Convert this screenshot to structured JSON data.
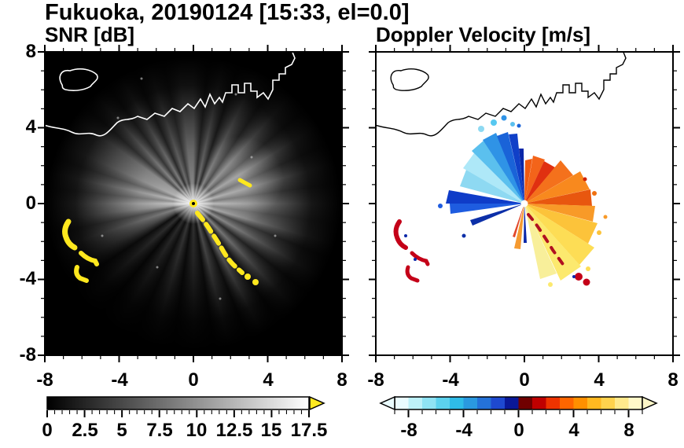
{
  "title": "Fukuoka, 20190124 [15:33, el=0.0]",
  "left_panel": {
    "title": "SNR [dB]",
    "y_ticks": [
      "8",
      "4",
      "0",
      "-4",
      "-8"
    ],
    "x_ticks": [
      "-8",
      "-4",
      "0",
      "4",
      "8"
    ],
    "colorbar_ticks": [
      "0",
      "2.5",
      "5",
      "7.5",
      "10",
      "12.5",
      "15",
      "17.5"
    ]
  },
  "right_panel": {
    "title": "Doppler Velocity [m/s]",
    "x_ticks": [
      "-8",
      "-4",
      "0",
      "4",
      "8"
    ],
    "colorbar_ticks": [
      "-8",
      "-4",
      "0",
      "4",
      "8"
    ]
  },
  "colors": {
    "clutter_yellow": "#ffe81e",
    "clutter_red": "#c40018",
    "snr_overflow_arrow": "#ffe920",
    "velocity_negative": "#1040c8",
    "velocity_positive": "#ff6600"
  },
  "chart_data": [
    {
      "type": "heatmap",
      "variant": "radar_ppi",
      "title": "SNR [dB]",
      "x_range": [
        -8,
        8
      ],
      "y_range": [
        -8,
        8
      ],
      "x_ticks": [
        -8,
        -4,
        0,
        4,
        8
      ],
      "y_ticks": [
        -8,
        -4,
        0,
        4,
        8
      ],
      "radar_center": [
        0,
        0
      ],
      "colorbar": {
        "range": [
          0,
          17.5
        ],
        "ticks": [
          0,
          2.5,
          5,
          7.5,
          10,
          12.5,
          15,
          17.5
        ],
        "colormap": "grayscale black(0) to white(17.5) with yellow overflow arrow at high end"
      },
      "features": [
        {
          "name": "radial-beam-echoes",
          "description": "gray radial streaks (SNR ~3-14 dB) emanating from radar at origin in nearly all azimuths, brightest toward W, NW and E, fading out by ~6 range units"
        },
        {
          "name": "bright-core",
          "description": "saturated white/yellow cluster at radar origin (0,0)"
        },
        {
          "name": "ground-clutter-arcs",
          "description": "saturated (>17.5 dB, yellow) clutter",
          "locations": [
            [
              -6.6,
              -1.7
            ],
            [
              -5.7,
              -2.9
            ],
            [
              -6.2,
              -3.6
            ],
            [
              0.4,
              -0.8
            ],
            [
              1.0,
              -1.6
            ],
            [
              1.4,
              -2.2
            ],
            [
              1.9,
              -2.9
            ],
            [
              2.4,
              -3.5
            ],
            [
              2.9,
              -3.9
            ],
            [
              3.3,
              -4.2
            ],
            [
              2.8,
              1.1
            ]
          ]
        },
        {
          "name": "coastline",
          "description": "white coastline outline across upper third, island near (-6, 6.8), blocky harbor structures near x 1.5 to 4, y 5 to 7"
        }
      ]
    },
    {
      "type": "heatmap",
      "variant": "radar_ppi",
      "title": "Doppler Velocity [m/s]",
      "x_range": [
        -8,
        8
      ],
      "y_range": [
        -8,
        8
      ],
      "x_ticks": [
        -8,
        -4,
        0,
        4,
        8
      ],
      "y_ticks": [
        -8,
        -4,
        0,
        4,
        8
      ],
      "radar_center": [
        0,
        0
      ],
      "colorbar": {
        "range": [
          -9,
          9
        ],
        "ticks": [
          -8,
          -4,
          0,
          4,
          8
        ],
        "colormap": "pale cyan to cyan to blue to navy for negative velocities; dark red to red to orange to yellow to pale yellow for positive; arrows at both ends"
      },
      "features": [
        {
          "name": "negative-velocity-fan",
          "azimuth_deg": [
            285,
            359
          ],
          "max_range": 4,
          "values_mps": [
            -2,
            -8
          ],
          "description": "cyan/blue/navy wedge NW to N of radar"
        },
        {
          "name": "negative-velocity-rays-west",
          "azimuth_deg": [
            245,
            282
          ],
          "max_range": 4,
          "values_mps": [
            -4,
            -8
          ],
          "description": "blue streaks due west of radar"
        },
        {
          "name": "positive-velocity-fan-ne-e",
          "azimuth_deg": [
            0,
            115
          ],
          "max_range": 3.5,
          "values_mps": [
            1,
            5
          ],
          "description": "dark red/red/orange wedge NE through E"
        },
        {
          "name": "positive-velocity-fan-se",
          "azimuth_deg": [
            115,
            170
          ],
          "max_range": 4.5,
          "values_mps": [
            5,
            9
          ],
          "description": "yellow/pale-yellow broad fan SE of radar"
        },
        {
          "name": "clutter",
          "description": "dark red clutter arcs SW and S matching SNR clutter",
          "locations": [
            [
              -6.6,
              -1.7
            ],
            [
              -5.7,
              -2.9
            ],
            [
              -6.2,
              -3.6
            ],
            [
              1.9,
              -3.8
            ],
            [
              2.4,
              -4.2
            ]
          ]
        },
        {
          "name": "coastline",
          "description": "black coastline outline, same geometry as SNR panel"
        }
      ]
    }
  ]
}
